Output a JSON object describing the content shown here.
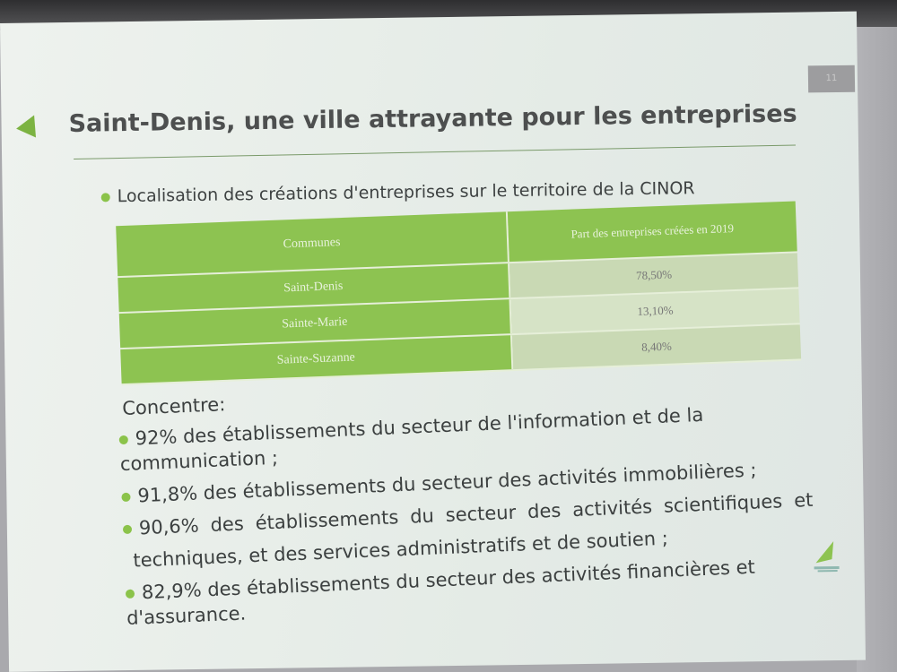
{
  "slide": {
    "page_number": "11",
    "title": "Saint-Denis, une ville attrayante pour les entreprises",
    "subtitle": "Localisation des créations d'entreprises sur le territoire de la CINOR",
    "table": {
      "headers": [
        "Communes",
        "Part des entreprises créées en 2019"
      ],
      "rows": [
        {
          "commune": "Saint-Denis",
          "part": "78,50%"
        },
        {
          "commune": "Sainte-Marie",
          "part": "13,10%"
        },
        {
          "commune": "Sainte-Suzanne",
          "part": "8,40%"
        }
      ]
    },
    "intro": "Concentre:",
    "bullets": [
      "92% des établissements du secteur de l'information et de la communication ;",
      "91,8% des établissements du secteur des activités immobilières ;",
      "90,6% des établissements du secteur des activités scientifiques et",
      "82,9% des établissements du secteur des activités financières et d'assurance."
    ],
    "bullet3_continuation": "techniques, et des services administratifs et de soutien ;",
    "colors": {
      "accent_green": "#8dc351",
      "text": "#3c4040"
    }
  }
}
